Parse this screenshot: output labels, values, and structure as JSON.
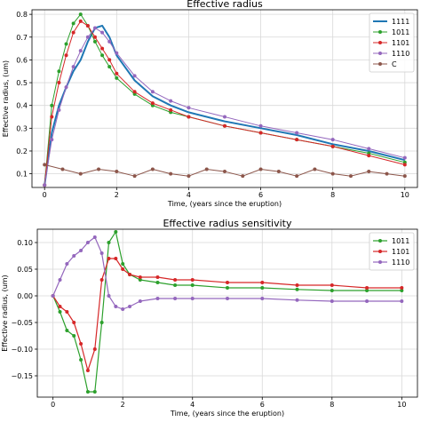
{
  "chart_data": [
    {
      "type": "line",
      "title": "Effective radius",
      "xlabel": "Time, (years since the eruption)",
      "ylabel": "Effective radius, (um)",
      "xlim": [
        -0.35,
        10.35
      ],
      "ylim": [
        0.04,
        0.82
      ],
      "xticks": [
        0,
        2,
        4,
        6,
        8,
        10
      ],
      "yticks": [
        0.1,
        0.2,
        0.3,
        0.4,
        0.5,
        0.6,
        0.7,
        0.8
      ],
      "grid": true,
      "legend_position": "top-right",
      "series": [
        {
          "name": "1111",
          "color": "#1f77b4",
          "marker": "none",
          "linewidth": 2,
          "x": [
            0,
            0.2,
            0.4,
            0.6,
            0.8,
            1.0,
            1.2,
            1.4,
            1.6,
            1.8,
            2.0,
            2.5,
            3.0,
            3.5,
            4.0,
            5.0,
            6.0,
            7.0,
            8.0,
            9.0,
            10.0
          ],
          "y": [
            0.05,
            0.28,
            0.4,
            0.48,
            0.55,
            0.6,
            0.68,
            0.74,
            0.75,
            0.7,
            0.62,
            0.51,
            0.44,
            0.4,
            0.37,
            0.33,
            0.3,
            0.27,
            0.23,
            0.2,
            0.16
          ]
        },
        {
          "name": "1011",
          "color": "#2ca02c",
          "marker": "circle",
          "linewidth": 1,
          "x": [
            0,
            0.2,
            0.4,
            0.6,
            0.8,
            1.0,
            1.2,
            1.4,
            1.6,
            1.8,
            2.0,
            2.5,
            3.0,
            3.5,
            4.0,
            5.0,
            6.0,
            7.0,
            8.0,
            9.0,
            10.0
          ],
          "y": [
            0.05,
            0.4,
            0.55,
            0.67,
            0.76,
            0.8,
            0.75,
            0.68,
            0.62,
            0.57,
            0.52,
            0.45,
            0.4,
            0.37,
            0.35,
            0.31,
            0.28,
            0.25,
            0.22,
            0.19,
            0.15
          ]
        },
        {
          "name": "1101",
          "color": "#d62728",
          "marker": "circle",
          "linewidth": 1,
          "x": [
            0,
            0.2,
            0.4,
            0.6,
            0.8,
            1.0,
            1.2,
            1.4,
            1.6,
            1.8,
            2.0,
            2.5,
            3.0,
            3.5,
            4.0,
            5.0,
            6.0,
            7.0,
            8.0,
            9.0,
            10.0
          ],
          "y": [
            0.05,
            0.35,
            0.5,
            0.62,
            0.72,
            0.77,
            0.75,
            0.7,
            0.65,
            0.6,
            0.54,
            0.46,
            0.41,
            0.38,
            0.35,
            0.31,
            0.28,
            0.25,
            0.22,
            0.18,
            0.14
          ]
        },
        {
          "name": "1110",
          "color": "#9467bd",
          "marker": "circle",
          "linewidth": 1,
          "x": [
            0,
            0.2,
            0.4,
            0.6,
            0.8,
            1.0,
            1.2,
            1.4,
            1.6,
            1.8,
            2.0,
            2.5,
            3.0,
            3.5,
            4.0,
            5.0,
            6.0,
            7.0,
            8.0,
            9.0,
            10.0
          ],
          "y": [
            0.05,
            0.25,
            0.38,
            0.48,
            0.57,
            0.64,
            0.7,
            0.74,
            0.72,
            0.68,
            0.63,
            0.53,
            0.46,
            0.42,
            0.39,
            0.35,
            0.31,
            0.28,
            0.25,
            0.21,
            0.17
          ]
        },
        {
          "name": "C",
          "color": "#8c564b",
          "marker": "circle",
          "linewidth": 1,
          "x": [
            0,
            0.5,
            1.0,
            1.5,
            2.0,
            2.5,
            3.0,
            3.5,
            4.0,
            4.5,
            5.0,
            5.5,
            6.0,
            6.5,
            7.0,
            7.5,
            8.0,
            8.5,
            9.0,
            9.5,
            10.0
          ],
          "y": [
            0.14,
            0.12,
            0.1,
            0.12,
            0.11,
            0.09,
            0.12,
            0.1,
            0.09,
            0.12,
            0.11,
            0.09,
            0.12,
            0.11,
            0.09,
            0.12,
            0.1,
            0.09,
            0.11,
            0.1,
            0.09
          ]
        }
      ]
    },
    {
      "type": "line",
      "title": "Effective radius sensitivity",
      "xlabel": "Time, (years since the eruption)",
      "ylabel": "Effective radius, (um)",
      "xlim": [
        -0.45,
        10.45
      ],
      "ylim": [
        -0.19,
        0.125
      ],
      "xticks": [
        0,
        2,
        4,
        6,
        8,
        10
      ],
      "yticks": [
        -0.15,
        -0.1,
        -0.05,
        0.0,
        0.05,
        0.1
      ],
      "ytick_labels": [
        "−0.15",
        "−0.10",
        "−0.05",
        "0.00",
        "0.05",
        "0.10"
      ],
      "grid": true,
      "legend_position": "top-right",
      "series": [
        {
          "name": "1011",
          "color": "#2ca02c",
          "marker": "circle",
          "x": [
            0,
            0.2,
            0.4,
            0.6,
            0.8,
            1.0,
            1.2,
            1.4,
            1.6,
            1.8,
            2.0,
            2.2,
            2.5,
            3.0,
            3.5,
            4.0,
            5.0,
            6.0,
            7.0,
            8.0,
            9.0,
            10.0
          ],
          "y": [
            0.0,
            -0.03,
            -0.065,
            -0.075,
            -0.12,
            -0.18,
            -0.18,
            -0.05,
            0.1,
            0.12,
            0.06,
            0.04,
            0.03,
            0.025,
            0.02,
            0.02,
            0.015,
            0.015,
            0.012,
            0.01,
            0.01,
            0.01
          ]
        },
        {
          "name": "1101",
          "color": "#d62728",
          "marker": "circle",
          "x": [
            0,
            0.2,
            0.4,
            0.6,
            0.8,
            1.0,
            1.2,
            1.4,
            1.6,
            1.8,
            2.0,
            2.2,
            2.5,
            3.0,
            3.5,
            4.0,
            5.0,
            6.0,
            7.0,
            8.0,
            9.0,
            10.0
          ],
          "y": [
            0.0,
            -0.02,
            -0.03,
            -0.05,
            -0.09,
            -0.14,
            -0.1,
            0.03,
            0.07,
            0.07,
            0.05,
            0.04,
            0.035,
            0.035,
            0.03,
            0.03,
            0.025,
            0.025,
            0.02,
            0.02,
            0.015,
            0.015
          ]
        },
        {
          "name": "1110",
          "color": "#9467bd",
          "marker": "circle",
          "x": [
            0,
            0.2,
            0.4,
            0.6,
            0.8,
            1.0,
            1.2,
            1.4,
            1.6,
            1.8,
            2.0,
            2.2,
            2.5,
            3.0,
            3.5,
            4.0,
            5.0,
            6.0,
            7.0,
            8.0,
            9.0,
            10.0
          ],
          "y": [
            0.0,
            0.03,
            0.06,
            0.075,
            0.085,
            0.1,
            0.11,
            0.08,
            0.0,
            -0.02,
            -0.025,
            -0.02,
            -0.01,
            -0.005,
            -0.005,
            -0.005,
            -0.005,
            -0.005,
            -0.008,
            -0.01,
            -0.01,
            -0.01
          ]
        }
      ]
    }
  ]
}
